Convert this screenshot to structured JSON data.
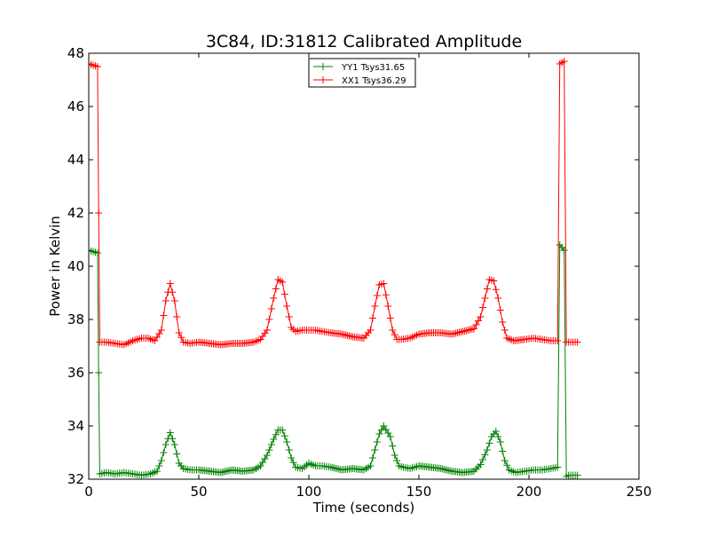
{
  "chart_data": {
    "type": "line",
    "title": "3C84, ID:31812 Calibrated Amplitude",
    "xlabel": "Time (seconds)",
    "ylabel": "Power in Kelvin",
    "xlim": [
      0,
      250
    ],
    "ylim": [
      32,
      48
    ],
    "xticks": [
      0,
      50,
      100,
      150,
      200,
      250
    ],
    "yticks": [
      32,
      34,
      36,
      38,
      40,
      42,
      44,
      46,
      48
    ],
    "grid": false,
    "legend_position": "top-center",
    "marker": "plus",
    "series": [
      {
        "name": "YY1 Tsys31.65",
        "color": "#008000",
        "x": [
          0,
          4,
          4.5,
          5,
          8,
          12,
          16,
          20,
          24,
          28,
          31,
          33,
          35,
          37,
          39,
          41,
          43,
          46,
          50,
          55,
          60,
          65,
          70,
          75,
          78,
          81,
          84,
          86,
          88,
          90,
          92,
          94,
          97,
          100,
          103,
          106,
          110,
          115,
          120,
          125,
          128,
          130,
          132,
          134,
          137,
          139,
          141,
          143,
          146,
          150,
          155,
          160,
          165,
          170,
          175,
          178,
          181,
          183,
          185,
          187,
          189,
          191,
          194,
          198,
          202,
          206,
          210,
          213,
          214,
          215,
          216,
          217,
          218,
          219,
          222
        ],
        "y": [
          40.6,
          40.5,
          36.0,
          32.2,
          32.25,
          32.2,
          32.25,
          32.2,
          32.15,
          32.2,
          32.3,
          32.7,
          33.3,
          33.75,
          33.3,
          32.6,
          32.4,
          32.35,
          32.35,
          32.3,
          32.25,
          32.35,
          32.3,
          32.35,
          32.5,
          32.9,
          33.5,
          33.85,
          33.85,
          33.4,
          32.8,
          32.45,
          32.4,
          32.6,
          32.5,
          32.5,
          32.45,
          32.35,
          32.4,
          32.35,
          32.5,
          33.1,
          33.7,
          34.0,
          33.6,
          32.9,
          32.5,
          32.45,
          32.4,
          32.5,
          32.45,
          32.4,
          32.3,
          32.25,
          32.3,
          32.55,
          33.1,
          33.6,
          33.8,
          33.4,
          32.7,
          32.35,
          32.25,
          32.3,
          32.35,
          32.35,
          32.4,
          32.45,
          40.8,
          40.7,
          40.6,
          32.1,
          32.15,
          32.15,
          32.15
        ]
      },
      {
        "name": "XX1 Tsys36.29",
        "color": "#ff0000",
        "x": [
          0,
          4,
          4.5,
          5,
          8,
          12,
          16,
          20,
          24,
          27,
          30,
          33,
          35,
          37,
          39,
          41,
          43,
          46,
          50,
          55,
          60,
          65,
          70,
          75,
          78,
          81,
          84,
          86,
          88,
          90,
          92,
          94,
          97,
          100,
          103,
          106,
          110,
          115,
          120,
          125,
          128,
          130,
          132,
          134,
          136,
          138,
          140,
          142,
          146,
          150,
          155,
          160,
          165,
          170,
          175,
          178,
          180,
          182,
          184,
          186,
          188,
          190,
          193,
          198,
          202,
          206,
          210,
          213,
          214,
          215,
          216,
          217,
          218,
          219,
          222
        ],
        "y": [
          47.6,
          47.5,
          42.0,
          37.15,
          37.15,
          37.1,
          37.05,
          37.2,
          37.3,
          37.3,
          37.2,
          37.6,
          38.7,
          39.35,
          38.7,
          37.5,
          37.15,
          37.1,
          37.15,
          37.1,
          37.05,
          37.1,
          37.1,
          37.15,
          37.25,
          37.6,
          38.8,
          39.5,
          39.4,
          38.5,
          37.7,
          37.55,
          37.6,
          37.6,
          37.6,
          37.55,
          37.5,
          37.45,
          37.35,
          37.3,
          37.6,
          38.5,
          39.3,
          39.35,
          38.5,
          37.6,
          37.25,
          37.25,
          37.3,
          37.45,
          37.5,
          37.5,
          37.45,
          37.55,
          37.65,
          38.1,
          38.8,
          39.5,
          39.45,
          38.8,
          37.9,
          37.3,
          37.2,
          37.25,
          37.3,
          37.25,
          37.2,
          37.2,
          47.6,
          47.65,
          47.7,
          37.15,
          37.15,
          37.15,
          37.15
        ]
      }
    ]
  }
}
